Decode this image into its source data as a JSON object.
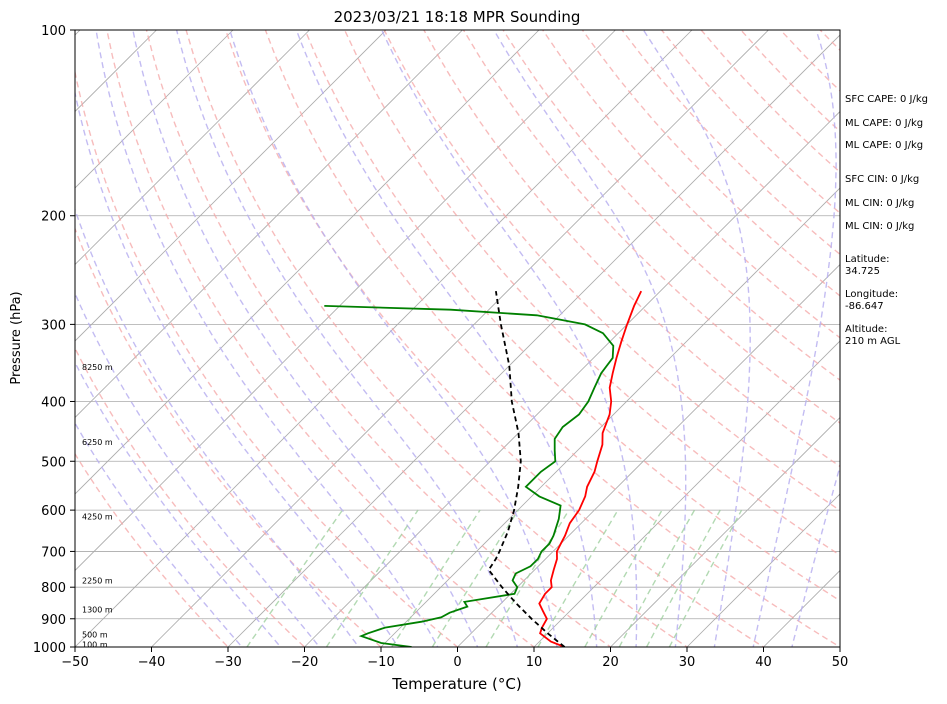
{
  "chart_data": {
    "type": "line",
    "title": "2023/03/21 18:18 MPR Sounding",
    "xlabel": "Temperature (°C)",
    "ylabel": "Pressure (hPa)",
    "xlim": [
      -50,
      50
    ],
    "ylim": [
      1000,
      100
    ],
    "y_scale": "log",
    "grid": true,
    "x_ticks": [
      -50,
      -40,
      -30,
      -20,
      -10,
      0,
      10,
      20,
      30,
      40,
      50
    ],
    "y_ticks": [
      1000,
      900,
      800,
      700,
      600,
      500,
      400,
      300,
      200,
      100
    ],
    "series": [
      {
        "key": "temperature",
        "color": "#ff0000",
        "points": [
          [
            1000,
            14.0
          ],
          [
            980,
            11.5
          ],
          [
            950,
            9.0
          ],
          [
            930,
            8.5
          ],
          [
            900,
            8.0
          ],
          [
            875,
            6.5
          ],
          [
            850,
            5.0
          ],
          [
            820,
            4.5
          ],
          [
            800,
            4.5
          ],
          [
            780,
            3.5
          ],
          [
            750,
            2.5
          ],
          [
            720,
            1.5
          ],
          [
            700,
            0.5
          ],
          [
            680,
            0.0
          ],
          [
            660,
            -0.5
          ],
          [
            630,
            -1.5
          ],
          [
            600,
            -2.0
          ],
          [
            570,
            -3.0
          ],
          [
            550,
            -4.0
          ],
          [
            520,
            -5.0
          ],
          [
            500,
            -6.0
          ],
          [
            470,
            -7.5
          ],
          [
            450,
            -9.0
          ],
          [
            420,
            -10.5
          ],
          [
            400,
            -12.0
          ],
          [
            380,
            -14.0
          ],
          [
            360,
            -15.5
          ],
          [
            340,
            -17.0
          ],
          [
            320,
            -18.5
          ],
          [
            300,
            -20.0
          ],
          [
            280,
            -21.5
          ],
          [
            265,
            -22.5
          ]
        ]
      },
      {
        "key": "dewpoint",
        "color": "#008000",
        "points": [
          [
            1000,
            -6.0
          ],
          [
            985,
            -10.5
          ],
          [
            960,
            -14.0
          ],
          [
            950,
            -13.5
          ],
          [
            930,
            -12.0
          ],
          [
            910,
            -8.0
          ],
          [
            895,
            -6.0
          ],
          [
            880,
            -5.5
          ],
          [
            860,
            -4.0
          ],
          [
            845,
            -5.0
          ],
          [
            820,
            0.5
          ],
          [
            800,
            0.0
          ],
          [
            780,
            -1.5
          ],
          [
            760,
            -2.0
          ],
          [
            740,
            -1.0
          ],
          [
            720,
            -1.0
          ],
          [
            700,
            -1.5
          ],
          [
            680,
            -1.5
          ],
          [
            660,
            -2.0
          ],
          [
            620,
            -3.5
          ],
          [
            590,
            -5.0
          ],
          [
            570,
            -9.0
          ],
          [
            550,
            -12.0
          ],
          [
            520,
            -12.0
          ],
          [
            500,
            -11.5
          ],
          [
            480,
            -13.0
          ],
          [
            460,
            -14.5
          ],
          [
            440,
            -15.0
          ],
          [
            420,
            -14.5
          ],
          [
            400,
            -15.0
          ],
          [
            380,
            -16.0
          ],
          [
            360,
            -17.0
          ],
          [
            340,
            -17.5
          ],
          [
            325,
            -19.0
          ],
          [
            310,
            -22.0
          ],
          [
            300,
            -25.5
          ],
          [
            290,
            -33.0
          ],
          [
            284,
            -45.0
          ],
          [
            280,
            -62.0
          ]
        ]
      },
      {
        "key": "parcel",
        "color": "#000000",
        "dashed": true,
        "points": [
          [
            1000,
            14.0
          ],
          [
            950,
            10.0
          ],
          [
            900,
            6.0
          ],
          [
            850,
            2.0
          ],
          [
            800,
            -2.0
          ],
          [
            750,
            -6.0
          ],
          [
            720,
            -6.5
          ],
          [
            700,
            -7.0
          ],
          [
            650,
            -8.5
          ],
          [
            600,
            -10.5
          ],
          [
            550,
            -13.0
          ],
          [
            500,
            -16.0
          ],
          [
            450,
            -20.0
          ],
          [
            400,
            -25.0
          ],
          [
            350,
            -30.0
          ],
          [
            300,
            -36.5
          ],
          [
            265,
            -41.5
          ]
        ]
      }
    ],
    "height_labels": [
      {
        "p": 352,
        "text": "8250 m"
      },
      {
        "p": 465,
        "text": "6250 m"
      },
      {
        "p": 615,
        "text": "4250 m"
      },
      {
        "p": 780,
        "text": "2250 m"
      },
      {
        "p": 870,
        "text": "1300 m"
      },
      {
        "p": 955,
        "text": "500 m"
      },
      {
        "p": 990,
        "text": "100 m"
      }
    ],
    "indices": [
      "SFC CAPE: 0 J/kg",
      "ML CAPE: 0 J/kg",
      "ML CAPE: 0 J/kg",
      "SFC CIN: 0 J/kg",
      "ML CIN: 0 J/kg",
      "ML CIN: 0 J/kg"
    ],
    "location": {
      "latitude_label": "Latitude:",
      "latitude": "34.725",
      "longitude_label": "Longitude:",
      "longitude": "-86.647",
      "altitude_label": "Altitude:",
      "altitude": "210 m AGL"
    },
    "background_colors": {
      "isotherm": "#aaaaaa",
      "dry_adiabat": "#f4a6a6",
      "moist_adiabat": "#b8b0f0",
      "mixing_ratio": "#9fd09f"
    }
  }
}
